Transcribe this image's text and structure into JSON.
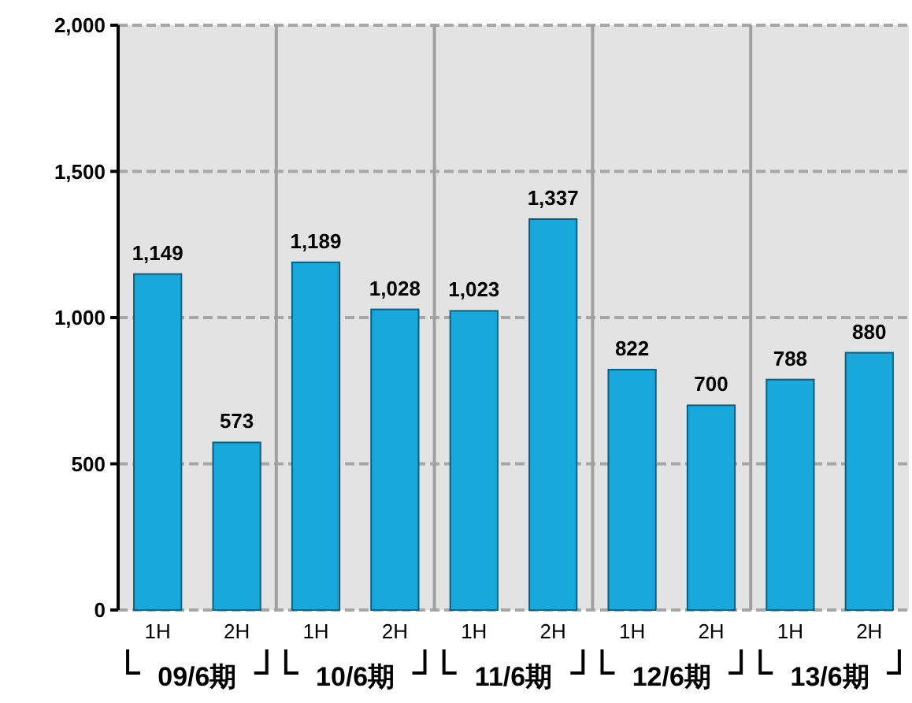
{
  "chart_data": {
    "type": "bar",
    "categories": [
      "1H",
      "2H",
      "1H",
      "2H",
      "1H",
      "2H",
      "1H",
      "2H",
      "1H",
      "2H"
    ],
    "values": [
      1149,
      573,
      1189,
      1028,
      1023,
      1337,
      822,
      700,
      788,
      880
    ],
    "value_labels": [
      "1,149",
      "573",
      "1,189",
      "1,028",
      "1,023",
      "1,337",
      "822",
      "700",
      "788",
      "880"
    ],
    "color": "#18a8dc",
    "ylim": [
      0,
      2000
    ],
    "yticks": [
      0,
      {
        "value": 500,
        "label": "500"
      },
      {
        "value": 1000,
        "label": "1,000"
      },
      {
        "value": 1500,
        "label": "1,500"
      },
      {
        "value": 2000,
        "label": "2,000"
      }
    ],
    "grid": true,
    "annotations": [
      "09/6期",
      "10/6期",
      "11/6期",
      "12/6期",
      "13/6期"
    ]
  }
}
